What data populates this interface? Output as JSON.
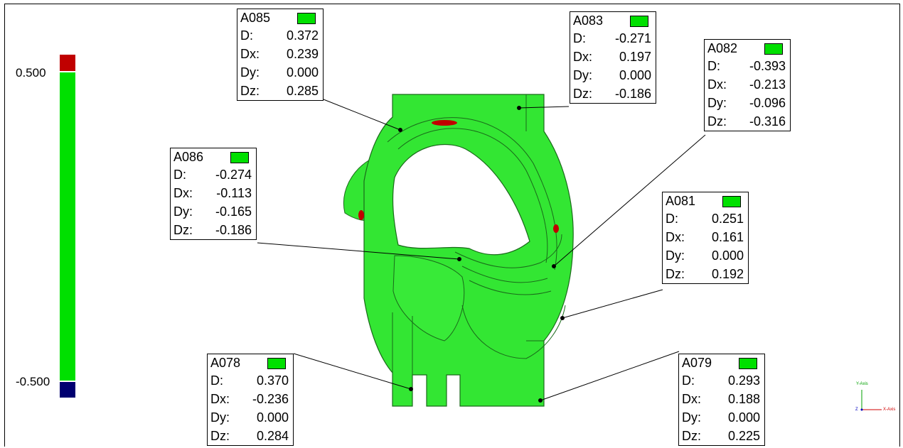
{
  "scale": {
    "max_label": "0.500",
    "min_label": "-0.500",
    "colors": {
      "high": "#c00000",
      "mid": "#00e000",
      "low": "#000070"
    }
  },
  "part_colors": {
    "surface": "#33e633",
    "edge": "#1a6a1a",
    "hot": "#c00000"
  },
  "callouts": [
    {
      "id": "A085",
      "D": "0.372",
      "Dx": "0.239",
      "Dy": "0.000",
      "Dz": "0.285",
      "color": "#00e000"
    },
    {
      "id": "A083",
      "D": "-0.271",
      "Dx": "0.197",
      "Dy": "0.000",
      "Dz": "-0.186",
      "color": "#00e000"
    },
    {
      "id": "A082",
      "D": "-0.393",
      "Dx": "-0.213",
      "Dy": "-0.096",
      "Dz": "-0.316",
      "color": "#00e000"
    },
    {
      "id": "A086",
      "D": "-0.274",
      "Dx": "-0.113",
      "Dy": "-0.165",
      "Dz": "-0.186",
      "color": "#00e000"
    },
    {
      "id": "A081",
      "D": "0.251",
      "Dx": "0.161",
      "Dy": "0.000",
      "Dz": "0.192",
      "color": "#00e000"
    },
    {
      "id": "A078",
      "D": "0.370",
      "Dx": "-0.236",
      "Dy": "0.000",
      "Dz": "0.284",
      "color": "#00e000"
    },
    {
      "id": "A079",
      "D": "0.293",
      "Dx": "0.188",
      "Dy": "0.000",
      "Dz": "0.225",
      "color": "#00e000"
    }
  ],
  "row_keys": {
    "d": "D:",
    "dx": "Dx:",
    "dy": "Dy:",
    "dz": "Dz:"
  },
  "axes": {
    "y": "Y-Axis",
    "x": "X-Axis",
    "z": "Z"
  }
}
